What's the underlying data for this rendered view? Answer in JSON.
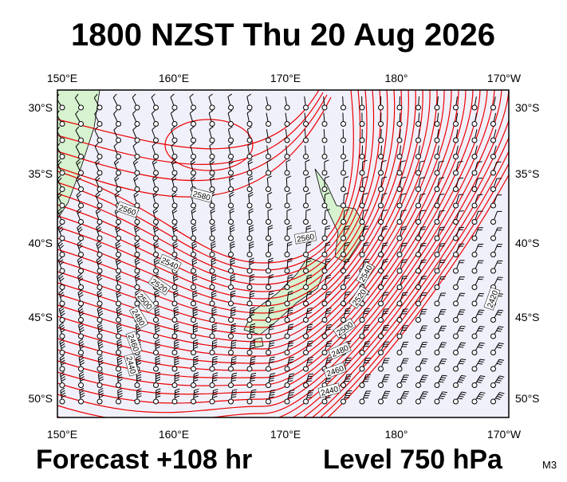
{
  "title": "1800 NZST Thu 20 Aug 2026",
  "longitude_labels": [
    "150°E",
    "160°E",
    "170°E",
    "180°",
    "170°W"
  ],
  "latitude_labels": [
    "30°S",
    "35°S",
    "40°S",
    "45°S",
    "50°S"
  ],
  "contour_labels": [
    "2580",
    "2560",
    "2560",
    "2540",
    "2520",
    "2500",
    "2480",
    "2460",
    "2440",
    "2540",
    "2520",
    "2500",
    "2480",
    "2460",
    "2440",
    "2420"
  ],
  "footer": {
    "forecast": "Forecast +108 hr",
    "level": "Level 750 hPa",
    "model": "M3"
  }
}
